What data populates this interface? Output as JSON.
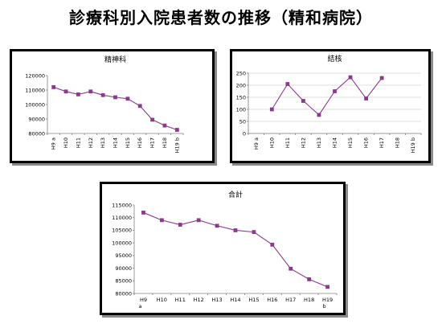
{
  "page": {
    "title": "診療科別入院患者数の推移（精和病院）"
  },
  "colors": {
    "series": "#8b3a8b",
    "axis": "#808080",
    "gridline": "#c0c0c0"
  },
  "chart_data": [
    {
      "type": "line",
      "title": "精神科",
      "x": [
        "H9 a",
        "H10",
        "H11",
        "H12",
        "H13",
        "H14",
        "H15",
        "H16",
        "H17",
        "H18",
        "H19 b"
      ],
      "series": [
        {
          "values": [
            112000,
            109000,
            107000,
            109000,
            106500,
            105000,
            104000,
            99000,
            89500,
            85500,
            82500
          ]
        }
      ],
      "yticks": [
        80000,
        90000,
        100000,
        110000,
        120000
      ],
      "ylim": [
        80000,
        120000
      ],
      "xlabel_rotated": true,
      "grid": false
    },
    {
      "type": "line",
      "title": "結核",
      "x": [
        "H9 a",
        "H10",
        "H11",
        "H12",
        "H13",
        "H14",
        "H15",
        "H16",
        "H17",
        "H18",
        "H19 b"
      ],
      "series": [
        {
          "values": [
            null,
            100,
            205,
            135,
            77,
            175,
            233,
            145,
            230,
            null,
            null
          ]
        }
      ],
      "yticks": [
        0,
        50,
        100,
        150,
        200,
        250
      ],
      "ylim": [
        0,
        250
      ],
      "xlabel_rotated": true,
      "grid": true
    },
    {
      "type": "line",
      "title": "合計",
      "x": [
        "H9 a",
        "H10",
        "H11",
        "H12",
        "H13",
        "H14",
        "H15",
        "H16",
        "H17",
        "H18",
        "H19 b"
      ],
      "series": [
        {
          "values": [
            112000,
            109000,
            107200,
            109000,
            106800,
            105000,
            104300,
            99300,
            89800,
            85600,
            82600
          ]
        }
      ],
      "yticks": [
        80000,
        85000,
        90000,
        95000,
        100000,
        105000,
        110000,
        115000
      ],
      "ylim": [
        80000,
        115000
      ],
      "xlabel_rotated": false,
      "grid": false
    }
  ]
}
